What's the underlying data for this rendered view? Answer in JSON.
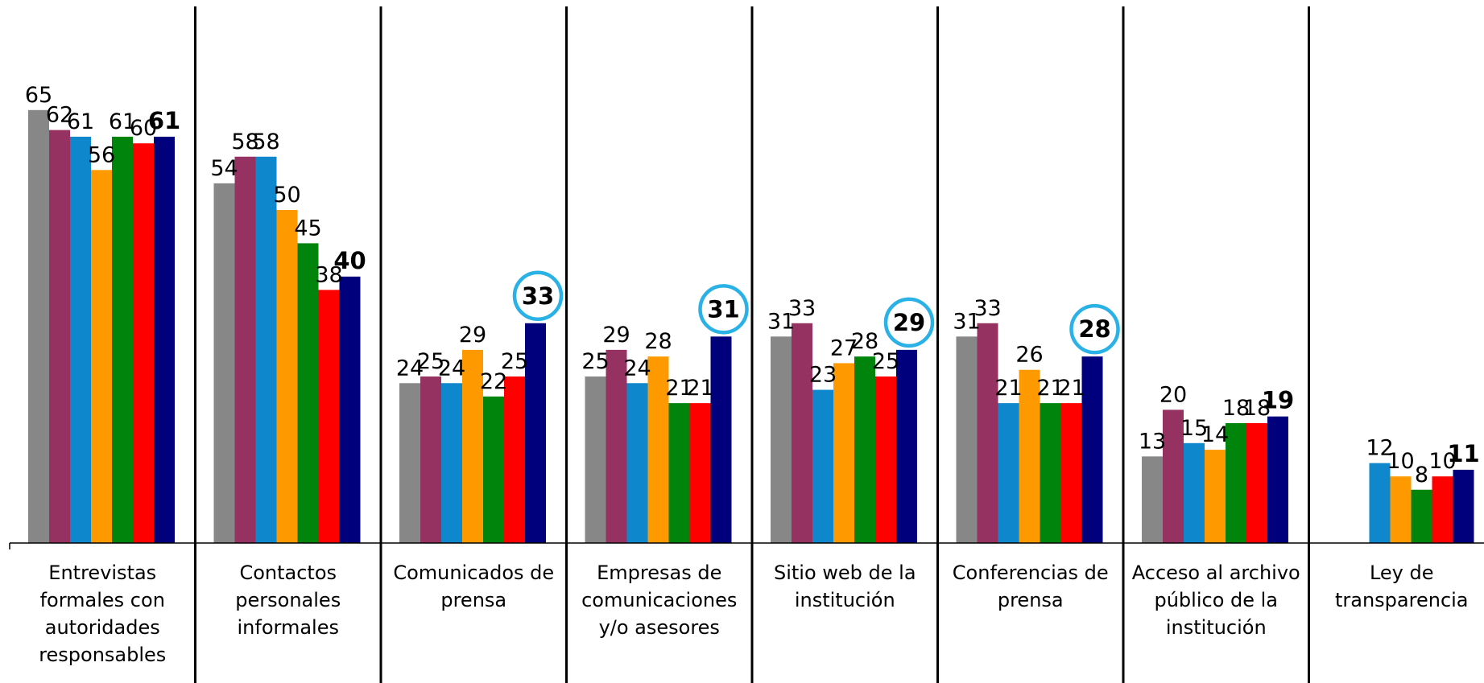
{
  "chart_data": {
    "type": "bar",
    "categories": [
      [
        "Entrevistas",
        "formales con",
        "autoridades",
        "responsables"
      ],
      [
        "Contactos",
        "personales",
        "informales"
      ],
      [
        "Comunicados de",
        "prensa"
      ],
      [
        "Empresas de",
        "comunicaciones",
        "y/o asesores"
      ],
      [
        "Sitio web de la",
        "institución"
      ],
      [
        "Conferencias de",
        "prensa"
      ],
      [
        "Acceso al archivo",
        "público de la",
        "institución"
      ],
      [
        "Ley de",
        "transparencia"
      ]
    ],
    "series_colors": [
      "#878787",
      "#953262",
      "#0f87cc",
      "#ff9900",
      "#00840b",
      "#ff0000",
      "#00007d"
    ],
    "highlight_color": "#2ab2e6",
    "series": [
      {
        "values": [
          65,
          54,
          24,
          25,
          31,
          31,
          13,
          null
        ]
      },
      {
        "values": [
          62,
          58,
          25,
          29,
          33,
          33,
          20,
          null
        ]
      },
      {
        "values": [
          61,
          58,
          24,
          24,
          23,
          21,
          15,
          12
        ]
      },
      {
        "values": [
          56,
          50,
          29,
          28,
          27,
          26,
          14,
          10
        ]
      },
      {
        "values": [
          61,
          45,
          22,
          21,
          28,
          21,
          18,
          8
        ]
      },
      {
        "values": [
          60,
          38,
          25,
          21,
          25,
          21,
          18,
          10
        ]
      },
      {
        "values": [
          61,
          40,
          33,
          31,
          29,
          28,
          19,
          11
        ]
      }
    ],
    "highlighted": [
      {
        "category_index": 2,
        "series_index": 6
      },
      {
        "category_index": 3,
        "series_index": 6
      },
      {
        "category_index": 4,
        "series_index": 6
      },
      {
        "category_index": 5,
        "series_index": 6
      }
    ],
    "ylim": [
      0,
      70
    ],
    "grid": false,
    "legend": "none"
  }
}
